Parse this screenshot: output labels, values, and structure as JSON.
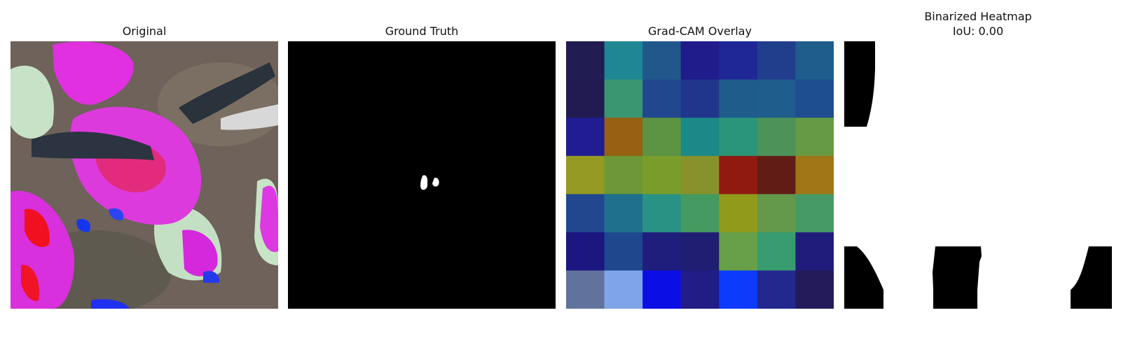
{
  "panels": {
    "original": {
      "title": "Original"
    },
    "ground_truth": {
      "title": "Ground Truth"
    },
    "gradcam": {
      "title": "Grad-CAM Overlay",
      "grid_colors": [
        [
          "#211c52",
          "#1f8694",
          "#21588c",
          "#201c8c",
          "#1f2796",
          "#213e8d",
          "#1f5d8c"
        ],
        [
          "#211b52",
          "#3a9670",
          "#21488f",
          "#20368c",
          "#1f5c8c",
          "#1f5d8c",
          "#1f4e8f"
        ],
        [
          "#211c92",
          "#976012",
          "#5c9444",
          "#1d8888",
          "#2a9578",
          "#4d9258",
          "#679a44"
        ],
        [
          "#959b22",
          "#6c9838",
          "#799c2a",
          "#87922a",
          "#911a10",
          "#611c16",
          "#a07616"
        ],
        [
          "#21488f",
          "#1f708d",
          "#2a9284",
          "#449a60",
          "#919a1b",
          "#64984b",
          "#459a66"
        ],
        [
          "#1c1681",
          "#1e478d",
          "#201e7c",
          "#201e72",
          "#67a048",
          "#389c70",
          "#201c7c"
        ],
        [
          "#61739c",
          "#7fa4e8",
          "#0c0ee6",
          "#211c86",
          "#0c3bfb",
          "#22288e",
          "#231b5a"
        ]
      ]
    },
    "binarized": {
      "title": "Binarized Heatmap\nIoU: 0.00",
      "iou": 0.0
    }
  }
}
